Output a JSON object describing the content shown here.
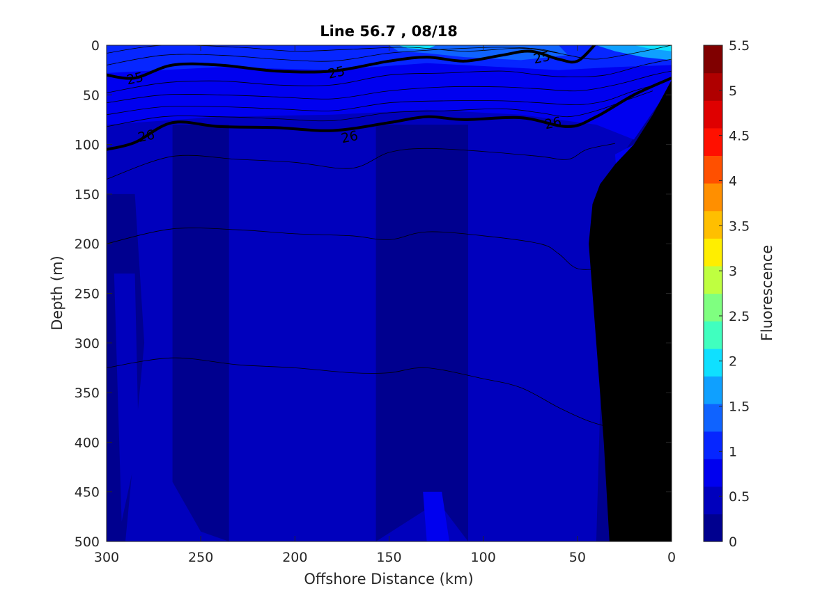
{
  "chart_data": {
    "type": "heatmap",
    "title": "Line 56.7 , 08/18",
    "xlabel": "Offshore Distance (km)",
    "ylabel": "Depth (m)",
    "xlim": [
      300,
      0
    ],
    "ylim": [
      500,
      0
    ],
    "x_ticks": [
      "300",
      "250",
      "200",
      "150",
      "100",
      "50",
      "0"
    ],
    "y_ticks": [
      "0",
      "50",
      "100",
      "150",
      "200",
      "250",
      "300",
      "350",
      "400",
      "450",
      "500"
    ],
    "colorbar": {
      "label": "Fluorescence",
      "range": [
        0,
        5.5
      ],
      "ticks": [
        "0",
        "0.5",
        "1",
        "1.5",
        "2",
        "2.5",
        "3",
        "3.5",
        "4",
        "4.5",
        "5",
        "5.5"
      ],
      "level_colors": [
        "#00008f",
        "#0000bd",
        "#0000ef",
        "#0626ff",
        "#0f63ff",
        "#0fa0ff",
        "#0fe0ff",
        "#40ffbf",
        "#7fff80",
        "#bfff40",
        "#ffee00",
        "#ffbf00",
        "#ff8f00",
        "#ff5000",
        "#ff1000",
        "#df0000",
        "#af0000",
        "#800000"
      ]
    },
    "contour_labels": [
      {
        "text": "25",
        "x": 285,
        "y": 33
      },
      {
        "text": "25",
        "x": 178,
        "y": 27
      },
      {
        "text": "25",
        "x": 69,
        "y": 12
      },
      {
        "text": "26",
        "x": 279,
        "y": 91
      },
      {
        "text": "26",
        "x": 171,
        "y": 92
      },
      {
        "text": "26",
        "x": 63,
        "y": 78
      }
    ],
    "isopycnals": [
      {
        "value": 25,
        "bold": true,
        "points": [
          [
            300,
            30
          ],
          [
            285,
            33
          ],
          [
            265,
            20
          ],
          [
            240,
            20
          ],
          [
            210,
            26
          ],
          [
            180,
            26
          ],
          [
            150,
            16
          ],
          [
            130,
            12
          ],
          [
            110,
            16
          ],
          [
            90,
            10
          ],
          [
            75,
            6
          ],
          [
            60,
            14
          ],
          [
            50,
            16
          ],
          [
            40,
            -2
          ]
        ]
      },
      {
        "value": 26,
        "bold": true,
        "points": [
          [
            300,
            105
          ],
          [
            285,
            98
          ],
          [
            265,
            78
          ],
          [
            240,
            82
          ],
          [
            210,
            83
          ],
          [
            180,
            86
          ],
          [
            150,
            78
          ],
          [
            130,
            72
          ],
          [
            110,
            75
          ],
          [
            80,
            73
          ],
          [
            55,
            82
          ],
          [
            40,
            72
          ],
          [
            20,
            50
          ],
          [
            0,
            33
          ]
        ]
      },
      {
        "value": null,
        "bold": false,
        "points": [
          [
            300,
            135
          ],
          [
            265,
            112
          ],
          [
            230,
            115
          ],
          [
            200,
            118
          ],
          [
            170,
            124
          ],
          [
            150,
            108
          ],
          [
            130,
            104
          ],
          [
            100,
            107
          ],
          [
            70,
            112
          ],
          [
            55,
            115
          ],
          [
            45,
            105
          ],
          [
            30,
            99
          ]
        ]
      },
      {
        "value": null,
        "bold": false,
        "points": [
          [
            300,
            200
          ],
          [
            265,
            185
          ],
          [
            230,
            186
          ],
          [
            200,
            190
          ],
          [
            170,
            192
          ],
          [
            150,
            196
          ],
          [
            130,
            188
          ],
          [
            100,
            192
          ],
          [
            70,
            200
          ],
          [
            60,
            210
          ],
          [
            50,
            225
          ],
          [
            35,
            225
          ],
          [
            25,
            228
          ]
        ]
      },
      {
        "value": null,
        "bold": false,
        "points": [
          [
            300,
            325
          ],
          [
            265,
            315
          ],
          [
            230,
            322
          ],
          [
            200,
            325
          ],
          [
            170,
            330
          ],
          [
            150,
            330
          ],
          [
            130,
            325
          ],
          [
            100,
            336
          ],
          [
            80,
            345
          ],
          [
            60,
            365
          ],
          [
            45,
            378
          ],
          [
            33,
            385
          ]
        ]
      },
      {
        "value": null,
        "bold": false,
        "points": [
          [
            300,
            8
          ],
          [
            270,
            0
          ],
          [
            230,
            2
          ],
          [
            200,
            6
          ],
          [
            170,
            4
          ],
          [
            140,
            2
          ],
          [
            110,
            6
          ],
          [
            80,
            3
          ],
          [
            60,
            8
          ]
        ]
      },
      {
        "value": null,
        "bold": false,
        "points": [
          [
            300,
            20
          ],
          [
            270,
            10
          ],
          [
            240,
            10
          ],
          [
            210,
            14
          ],
          [
            180,
            16
          ],
          [
            150,
            8
          ],
          [
            120,
            4
          ],
          [
            90,
            2
          ],
          [
            70,
            4
          ],
          [
            55,
            10
          ],
          [
            40,
            14
          ],
          [
            20,
            8
          ],
          [
            0,
            0
          ]
        ]
      },
      {
        "value": null,
        "bold": false,
        "points": [
          [
            300,
            48
          ],
          [
            270,
            38
          ],
          [
            240,
            36
          ],
          [
            210,
            40
          ],
          [
            180,
            40
          ],
          [
            150,
            30
          ],
          [
            120,
            28
          ],
          [
            90,
            26
          ],
          [
            70,
            30
          ],
          [
            55,
            32
          ],
          [
            35,
            30
          ],
          [
            15,
            20
          ],
          [
            0,
            14
          ]
        ]
      },
      {
        "value": null,
        "bold": false,
        "points": [
          [
            300,
            58
          ],
          [
            270,
            50
          ],
          [
            240,
            50
          ],
          [
            210,
            52
          ],
          [
            180,
            54
          ],
          [
            150,
            46
          ],
          [
            120,
            42
          ],
          [
            90,
            42
          ],
          [
            70,
            44
          ],
          [
            50,
            46
          ],
          [
            30,
            40
          ],
          [
            10,
            30
          ],
          [
            0,
            26
          ]
        ]
      },
      {
        "value": null,
        "bold": false,
        "points": [
          [
            300,
            70
          ],
          [
            270,
            62
          ],
          [
            240,
            62
          ],
          [
            210,
            64
          ],
          [
            180,
            66
          ],
          [
            150,
            58
          ],
          [
            120,
            56
          ],
          [
            90,
            56
          ],
          [
            70,
            58
          ],
          [
            50,
            60
          ],
          [
            35,
            56
          ],
          [
            20,
            46
          ],
          [
            5,
            38
          ]
        ]
      },
      {
        "value": null,
        "bold": false,
        "points": [
          [
            300,
            82
          ],
          [
            270,
            72
          ],
          [
            240,
            72
          ],
          [
            210,
            74
          ],
          [
            180,
            76
          ],
          [
            150,
            68
          ],
          [
            120,
            66
          ],
          [
            90,
            64
          ],
          [
            70,
            68
          ],
          [
            55,
            72
          ],
          [
            40,
            66
          ],
          [
            25,
            56
          ],
          [
            10,
            46
          ]
        ]
      }
    ],
    "fluorescence_patches": [
      {
        "level": 0,
        "points": [
          [
            300,
            500
          ],
          [
            300,
            0
          ],
          [
            0,
            0
          ],
          [
            0,
            500
          ]
        ]
      },
      {
        "level": 1,
        "points": [
          [
            300,
            0
          ],
          [
            0,
            0
          ],
          [
            0,
            40
          ],
          [
            30,
            120
          ],
          [
            35,
            170
          ],
          [
            40,
            500
          ],
          [
            300,
            500
          ]
        ]
      },
      {
        "level": 2,
        "points": [
          [
            300,
            0
          ],
          [
            0,
            0
          ],
          [
            0,
            40
          ],
          [
            20,
            95
          ],
          [
            40,
            80
          ],
          [
            80,
            70
          ],
          [
            130,
            65
          ],
          [
            180,
            70
          ],
          [
            240,
            72
          ],
          [
            300,
            80
          ]
        ]
      },
      {
        "level": 3,
        "points": [
          [
            300,
            0
          ],
          [
            0,
            0
          ],
          [
            0,
            20
          ],
          [
            30,
            22
          ],
          [
            60,
            25
          ],
          [
            90,
            22
          ],
          [
            130,
            18
          ],
          [
            180,
            25
          ],
          [
            240,
            22
          ],
          [
            300,
            28
          ]
        ]
      },
      {
        "level": 4,
        "points": [
          [
            150,
            0
          ],
          [
            60,
            0
          ],
          [
            55,
            10
          ],
          [
            80,
            15
          ],
          [
            110,
            12
          ],
          [
            130,
            8
          ],
          [
            145,
            6
          ]
        ]
      },
      {
        "level": 5,
        "points": [
          [
            40,
            0
          ],
          [
            0,
            0
          ],
          [
            0,
            15
          ],
          [
            15,
            12
          ],
          [
            30,
            6
          ]
        ]
      },
      {
        "level": 4,
        "points": [
          [
            140,
            0
          ],
          [
            100,
            0
          ],
          [
            110,
            5
          ],
          [
            125,
            6
          ]
        ]
      },
      {
        "level": 6,
        "points": [
          [
            20,
            0
          ],
          [
            0,
            0
          ],
          [
            0,
            6
          ],
          [
            10,
            4
          ]
        ]
      },
      {
        "level": 6,
        "points": [
          [
            145,
            0
          ],
          [
            125,
            0
          ],
          [
            130,
            4
          ],
          [
            140,
            3
          ]
        ]
      },
      {
        "level": 0,
        "points": [
          [
            265,
            80
          ],
          [
            235,
            80
          ],
          [
            235,
            500
          ],
          [
            250,
            490
          ],
          [
            265,
            440
          ]
        ]
      },
      {
        "level": 0,
        "points": [
          [
            157,
            80
          ],
          [
            108,
            80
          ],
          [
            108,
            500
          ],
          [
            124,
            460
          ],
          [
            157,
            500
          ]
        ]
      },
      {
        "level": 0,
        "points": [
          [
            300,
            150
          ],
          [
            285,
            150
          ],
          [
            280,
            300
          ],
          [
            290,
            500
          ],
          [
            300,
            500
          ]
        ]
      },
      {
        "level": 2,
        "points": [
          [
            30,
            110
          ],
          [
            20,
            100
          ],
          [
            12,
            120
          ],
          [
            18,
            150
          ],
          [
            28,
            160
          ]
        ]
      },
      {
        "level": 2,
        "points": [
          [
            132,
            450
          ],
          [
            122,
            450
          ],
          [
            118,
            500
          ],
          [
            130,
            500
          ]
        ]
      },
      {
        "level": 1,
        "points": [
          [
            296,
            230
          ],
          [
            285,
            230
          ],
          [
            283,
            400
          ],
          [
            292,
            480
          ]
        ]
      }
    ],
    "bathymetry": [
      [
        33,
        500
      ],
      [
        36,
        400
      ],
      [
        40,
        300
      ],
      [
        42,
        250
      ],
      [
        44,
        200
      ],
      [
        42,
        160
      ],
      [
        38,
        140
      ],
      [
        30,
        120
      ],
      [
        20,
        100
      ],
      [
        10,
        70
      ],
      [
        0,
        35
      ],
      [
        0,
        500
      ]
    ]
  }
}
